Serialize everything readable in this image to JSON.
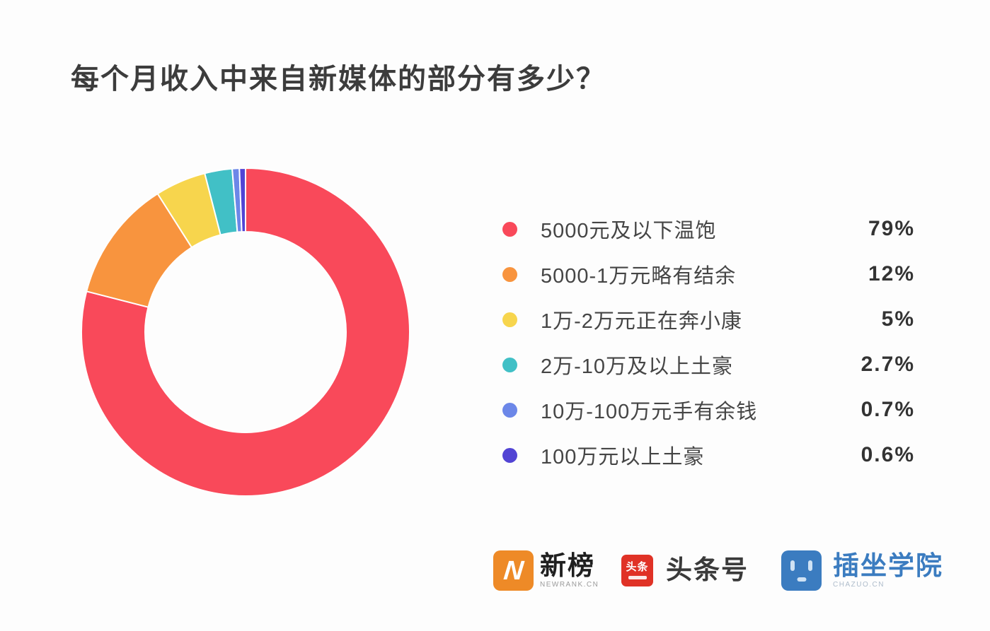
{
  "chart_data": {
    "type": "pie",
    "subtype": "donut",
    "title": "每个月收入中来自新媒体的部分有多少？",
    "legend_position": "right",
    "start_angle_deg": -90,
    "direction": "clockwise",
    "outer_radius": 232,
    "inner_radius": 142,
    "items": [
      {
        "label": "5000元及以下温饱",
        "value": 79,
        "percent_label": "79%",
        "color": "#F9495A"
      },
      {
        "label": "5000-1万元略有结余",
        "value": 12,
        "percent_label": "12%",
        "color": "#F8943E"
      },
      {
        "label": "1万-2万元正在奔小康",
        "value": 5,
        "percent_label": "5%",
        "color": "#F7D54D"
      },
      {
        "label": "2万-10万及以上土豪",
        "value": 2.7,
        "percent_label": "2.7%",
        "color": "#41C0C6"
      },
      {
        "label": "10万-100万元手有余钱",
        "value": 0.7,
        "percent_label": "0.7%",
        "color": "#6C87E8"
      },
      {
        "label": "100万元以上土豪",
        "value": 0.6,
        "percent_label": "0.6%",
        "color": "#5244D4"
      }
    ]
  },
  "footer": {
    "logos": [
      {
        "mark": "N",
        "title": "新榜",
        "subtitle": "NEWRANK.CN",
        "color": "#EE8A27",
        "title_color": "#1f1f1f"
      },
      {
        "mark": "头条",
        "title": "头条号",
        "subtitle": "",
        "color": "#E03226",
        "title_color": "#3a3a3a"
      },
      {
        "mark": "",
        "title": "插坐学院",
        "subtitle": "CHAZUO.CN",
        "color": "#3B7CC0",
        "title_color": "#3B7CC0"
      }
    ]
  }
}
